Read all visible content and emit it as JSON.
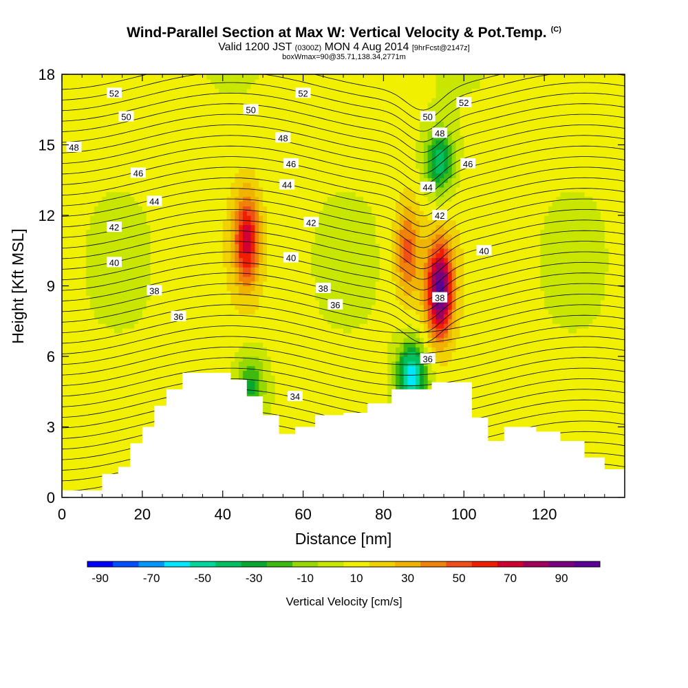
{
  "chart_data": {
    "type": "heatmap",
    "title": "Wind-Parallel Section at Max W: Vertical Velocity & Pot.Temp.",
    "title_mark": "(C)",
    "subtitle_parts": [
      "Valid 1200 JST",
      "(0300Z)",
      "MON 4 Aug 2014",
      "[9hrFcst@2147z]"
    ],
    "subtitle2": "boxWmax=90@35.71,138.34,2771m",
    "xlabel": "Distance [nm]",
    "ylabel": "Height [Kft MSL]",
    "xlim": [
      0,
      140
    ],
    "ylim": [
      0,
      18
    ],
    "x_ticks": [
      "0",
      "20",
      "40",
      "60",
      "80",
      "100",
      "120"
    ],
    "y_ticks": [
      "0",
      "3",
      "6",
      "9",
      "12",
      "15",
      "18"
    ],
    "colorbar": {
      "label": "Vertical Velocity [cm/s]",
      "tick_labels": [
        "-90",
        "-70",
        "-50",
        "-30",
        "-10",
        "10",
        "30",
        "50",
        "70",
        "90"
      ],
      "colors": [
        "#0000ff",
        "#0050ff",
        "#0096ff",
        "#00e6ff",
        "#00d79b",
        "#00c060",
        "#08a830",
        "#3cba10",
        "#96d800",
        "#c8e600",
        "#f0f000",
        "#f0d200",
        "#f0b400",
        "#f0820a",
        "#f05018",
        "#f01e00",
        "#d20032",
        "#a0005a",
        "#780080",
        "#5a0096"
      ]
    },
    "features": [
      {
        "kind": "updraft",
        "x": 46,
        "y": 11.0,
        "peak": 60
      },
      {
        "kind": "updraft",
        "x": 94,
        "y": 8.8,
        "peak": 90
      },
      {
        "kind": "updraft",
        "x": 86,
        "y": 10.5,
        "peak": 40
      },
      {
        "kind": "downdraft",
        "x": 87,
        "y": 5.2,
        "peak": -70
      },
      {
        "kind": "downdraft",
        "x": 94,
        "y": 14.3,
        "peak": -50
      },
      {
        "kind": "downdraft",
        "x": 47,
        "y": 4.8,
        "peak": -35
      }
    ],
    "terrain": [
      [
        0,
        0.3
      ],
      [
        10,
        1.0
      ],
      [
        14,
        1.3
      ],
      [
        17,
        2.3
      ],
      [
        20,
        3.0
      ],
      [
        23,
        3.9
      ],
      [
        26,
        4.6
      ],
      [
        30,
        5.3
      ],
      [
        42,
        5.0
      ],
      [
        46,
        4.3
      ],
      [
        50,
        3.5
      ],
      [
        54,
        2.7
      ],
      [
        58,
        3.0
      ],
      [
        63,
        3.5
      ],
      [
        70,
        3.6
      ],
      [
        76,
        4.0
      ],
      [
        82,
        4.6
      ],
      [
        92,
        4.9
      ],
      [
        102,
        3.4
      ],
      [
        106,
        2.4
      ],
      [
        110,
        3.0
      ],
      [
        118,
        2.8
      ],
      [
        124,
        2.4
      ],
      [
        130,
        1.7
      ],
      [
        135,
        1.2
      ],
      [
        140,
        1.0
      ]
    ],
    "theta_labels": [
      {
        "x": 13,
        "y": 17.2,
        "text": "52"
      },
      {
        "x": 60,
        "y": 17.2,
        "text": "52"
      },
      {
        "x": 100,
        "y": 16.8,
        "text": "52"
      },
      {
        "x": 16,
        "y": 16.2,
        "text": "50"
      },
      {
        "x": 47,
        "y": 16.5,
        "text": "50"
      },
      {
        "x": 91,
        "y": 16.2,
        "text": "50"
      },
      {
        "x": 3,
        "y": 14.9,
        "text": "48"
      },
      {
        "x": 55,
        "y": 15.3,
        "text": "48"
      },
      {
        "x": 94,
        "y": 15.5,
        "text": "48"
      },
      {
        "x": 19,
        "y": 13.8,
        "text": "46"
      },
      {
        "x": 57,
        "y": 14.2,
        "text": "46"
      },
      {
        "x": 101,
        "y": 14.2,
        "text": "46"
      },
      {
        "x": 23,
        "y": 12.6,
        "text": "44"
      },
      {
        "x": 56,
        "y": 13.3,
        "text": "44"
      },
      {
        "x": 91,
        "y": 13.2,
        "text": "44"
      },
      {
        "x": 13,
        "y": 11.5,
        "text": "42"
      },
      {
        "x": 62,
        "y": 11.7,
        "text": "42"
      },
      {
        "x": 94,
        "y": 12.0,
        "text": "42"
      },
      {
        "x": 13,
        "y": 10.0,
        "text": "40"
      },
      {
        "x": 57,
        "y": 10.2,
        "text": "40"
      },
      {
        "x": 105,
        "y": 10.5,
        "text": "40"
      },
      {
        "x": 23,
        "y": 8.8,
        "text": "38"
      },
      {
        "x": 65,
        "y": 8.9,
        "text": "38"
      },
      {
        "x": 94,
        "y": 8.5,
        "text": "38"
      },
      {
        "x": 29,
        "y": 7.7,
        "text": "36"
      },
      {
        "x": 68,
        "y": 8.2,
        "text": "36"
      },
      {
        "x": 91,
        "y": 5.9,
        "text": "36"
      },
      {
        "x": 58,
        "y": 4.3,
        "text": "34"
      }
    ]
  }
}
